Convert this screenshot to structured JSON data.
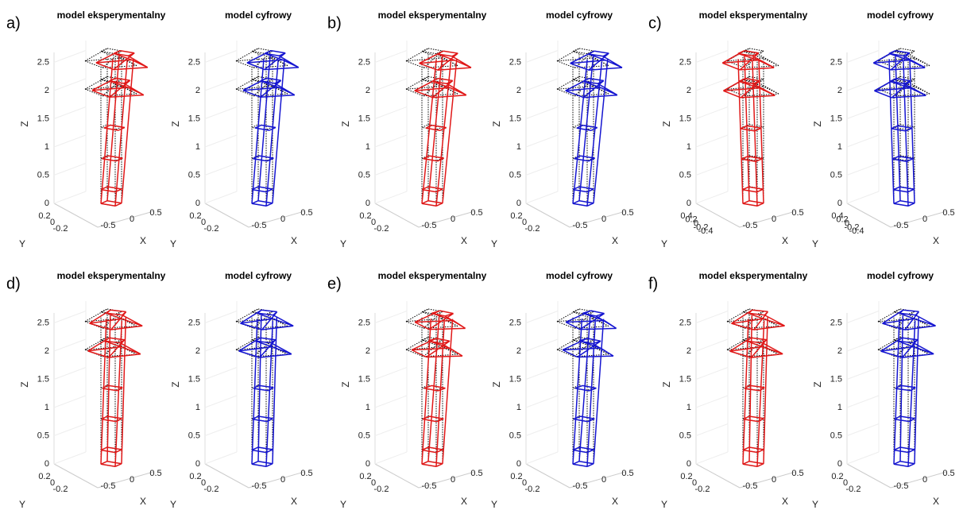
{
  "panels": [
    {
      "label": "a)",
      "plots": [
        {
          "title": "model eksperymentalny",
          "zlabel": "Z",
          "xlabel": "X",
          "ylabel": "Y",
          "zticks": [
            "0",
            "0.5",
            "1",
            "1.5",
            "2",
            "2.5"
          ],
          "xticks": [
            "-0.5",
            "0",
            "0.5"
          ],
          "yticks": [
            "0.2",
            "0",
            "-0.2"
          ]
        },
        {
          "title": "model cyfrowy",
          "zlabel": "Z",
          "xlabel": "X",
          "ylabel": "Y",
          "zticks": [
            "0",
            "0.5",
            "1",
            "1.5",
            "2",
            "2.5"
          ],
          "xticks": [
            "-0.5",
            "0",
            "0.5"
          ],
          "yticks": [
            "0.2",
            "0",
            "-0.2"
          ]
        }
      ]
    },
    {
      "label": "b)",
      "plots": [
        {
          "title": "model eksperymentalny",
          "zlabel": "Z",
          "xlabel": "X",
          "ylabel": "Y",
          "zticks": [
            "0",
            "0.5",
            "1",
            "1.5",
            "2",
            "2.5"
          ],
          "xticks": [
            "-0.5",
            "0",
            "0.5"
          ],
          "yticks": [
            "0.2",
            "0",
            "-0.2"
          ]
        },
        {
          "title": "model cyfrowy",
          "zlabel": "Z",
          "xlabel": "X",
          "ylabel": "Y",
          "zticks": [
            "0",
            "0.5",
            "1",
            "1.5",
            "2",
            "2.5"
          ],
          "xticks": [
            "-0.5",
            "0",
            "0.5"
          ],
          "yticks": [
            "0.2",
            "0",
            "-0.2"
          ]
        }
      ]
    },
    {
      "label": "c)",
      "plots": [
        {
          "title": "model eksperymentalny",
          "zlabel": "Z",
          "xlabel": "X",
          "ylabel": "Y",
          "zticks": [
            "0",
            "0.5",
            "1",
            "1.5",
            "2",
            "2.5"
          ],
          "xticks": [
            "-0.5",
            "0",
            "0.5"
          ],
          "yticks": [
            "0.4",
            "0.2",
            "0",
            "-0.2",
            "-0.4"
          ]
        },
        {
          "title": "model cyfrowy",
          "zlabel": "Z",
          "xlabel": "X",
          "ylabel": "Y",
          "zticks": [
            "0",
            "0.5",
            "1",
            "1.5",
            "2",
            "2.5"
          ],
          "xticks": [
            "-0.5",
            "0",
            "0.5"
          ],
          "yticks": [
            "0.4",
            "0.2",
            "0",
            "-0.2",
            "-0.4"
          ]
        }
      ]
    },
    {
      "label": "d)",
      "plots": [
        {
          "title": "model eksperymentalny",
          "zlabel": "Z",
          "xlabel": "X",
          "ylabel": "Y",
          "zticks": [
            "0",
            "0.5",
            "1",
            "1.5",
            "2",
            "2.5"
          ],
          "xticks": [
            "-0.5",
            "0",
            "0.5"
          ],
          "yticks": [
            "0.2",
            "0",
            "-0.2"
          ]
        },
        {
          "title": "model cyfrowy",
          "zlabel": "Z",
          "xlabel": "X",
          "ylabel": "Y",
          "zticks": [
            "0",
            "0.5",
            "1",
            "1.5",
            "2",
            "2.5"
          ],
          "xticks": [
            "-0.5",
            "0",
            "0.5"
          ],
          "yticks": [
            "0.2",
            "0",
            "-0.2"
          ]
        }
      ]
    },
    {
      "label": "e)",
      "plots": [
        {
          "title": "model eksperymentalny",
          "zlabel": "Z",
          "xlabel": "X",
          "ylabel": "Y",
          "zticks": [
            "0",
            "0.5",
            "1",
            "1.5",
            "2",
            "2.5"
          ],
          "xticks": [
            "-0.5",
            "0",
            "0.5"
          ],
          "yticks": [
            "0.2",
            "0",
            "-0.2"
          ]
        },
        {
          "title": "model cyfrowy",
          "zlabel": "Z",
          "xlabel": "X",
          "ylabel": "Y",
          "zticks": [
            "0",
            "0.5",
            "1",
            "1.5",
            "2",
            "2.5"
          ],
          "xticks": [
            "-0.5",
            "0",
            "0.5"
          ],
          "yticks": [
            "0.2",
            "0",
            "-0.2"
          ]
        }
      ]
    },
    {
      "label": "f)",
      "plots": [
        {
          "title": "model eksperymentalny",
          "zlabel": "Z",
          "xlabel": "X",
          "ylabel": "Y",
          "zticks": [
            "0",
            "0.5",
            "1",
            "1.5",
            "2",
            "2.5"
          ],
          "xticks": [
            "-0.5",
            "0",
            "0.5"
          ],
          "yticks": [
            "0.2",
            "0",
            "-0.2"
          ]
        },
        {
          "title": "model cyfrowy",
          "zlabel": "Z",
          "xlabel": "X",
          "ylabel": "Y",
          "zticks": [
            "0",
            "0.5",
            "1",
            "1.5",
            "2",
            "2.5"
          ],
          "xticks": [
            "-0.5",
            "0",
            "0.5"
          ],
          "yticks": [
            "0.2",
            "0",
            "-0.2"
          ]
        }
      ]
    }
  ]
}
